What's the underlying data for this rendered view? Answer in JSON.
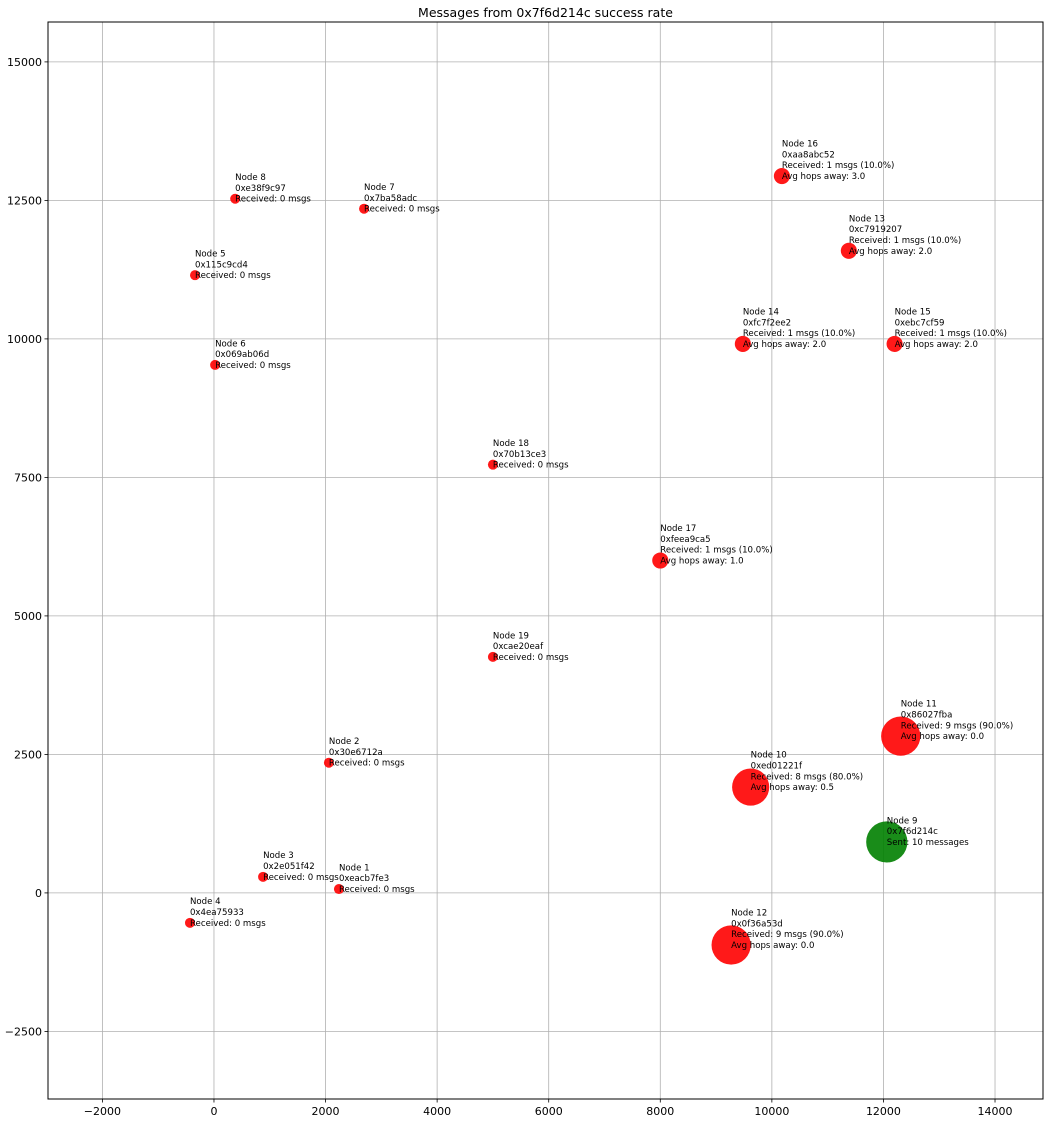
{
  "chart_data": {
    "type": "scatter",
    "title": "Messages from 0x7f6d214c success rate",
    "xlabel": "",
    "ylabel": "",
    "xlim": [
      -2975,
      14860
    ],
    "ylim": [
      -3720,
      15720
    ],
    "grid": true,
    "xticks": [
      -2000,
      0,
      2000,
      4000,
      6000,
      8000,
      10000,
      12000,
      14000
    ],
    "xtick_labels": [
      "−2000",
      "0",
      "2000",
      "4000",
      "6000",
      "8000",
      "10000",
      "12000",
      "14000"
    ],
    "yticks": [
      -2500,
      0,
      2500,
      5000,
      7500,
      10000,
      12500,
      15000
    ],
    "ytick_labels": [
      "−2500",
      "0",
      "2500",
      "5000",
      "7500",
      "10000",
      "12500",
      "15000"
    ],
    "colors": {
      "receiver": "#ff0000",
      "sender": "#008000"
    },
    "points": [
      {
        "node": "Node 1",
        "id": "0xeacb7fe3",
        "x": 2240,
        "y": 70,
        "count": 0,
        "role": "receiver",
        "lines": [
          "Node 1",
          "0xeacb7fe3",
          "Received: 0 msgs"
        ]
      },
      {
        "node": "Node 2",
        "id": "0x30e6712a",
        "x": 2060,
        "y": 2350,
        "count": 0,
        "role": "receiver",
        "lines": [
          "Node 2",
          "0x30e6712a",
          "Received: 0 msgs"
        ]
      },
      {
        "node": "Node 3",
        "id": "0x2e051f42",
        "x": 880,
        "y": 290,
        "count": 0,
        "role": "receiver",
        "lines": [
          "Node 3",
          "0x2e051f42",
          "Received: 0 msgs"
        ]
      },
      {
        "node": "Node 4",
        "id": "0x4ea75933",
        "x": -430,
        "y": -540,
        "count": 0,
        "role": "receiver",
        "lines": [
          "Node 4",
          "0x4ea75933",
          "Received: 0 msgs"
        ]
      },
      {
        "node": "Node 5",
        "id": "0x115c9cd4",
        "x": -340,
        "y": 11150,
        "count": 0,
        "role": "receiver",
        "lines": [
          "Node 5",
          "0x115c9cd4",
          "Received: 0 msgs"
        ]
      },
      {
        "node": "Node 6",
        "id": "0x069ab06d",
        "x": 20,
        "y": 9530,
        "count": 0,
        "role": "receiver",
        "lines": [
          "Node 6",
          "0x069ab06d",
          "Received: 0 msgs"
        ]
      },
      {
        "node": "Node 7",
        "id": "0x7ba58adc",
        "x": 2690,
        "y": 12350,
        "count": 0,
        "role": "receiver",
        "lines": [
          "Node 7",
          "0x7ba58adc",
          "Received: 0 msgs"
        ]
      },
      {
        "node": "Node 8",
        "id": "0xe38f9c97",
        "x": 380,
        "y": 12530,
        "count": 0,
        "role": "receiver",
        "lines": [
          "Node 8",
          "0xe38f9c97",
          "Received: 0 msgs"
        ]
      },
      {
        "node": "Node 9",
        "id": "0x7f6d214c",
        "x": 12060,
        "y": 920,
        "count": 10,
        "role": "sender",
        "lines": [
          "Node 9",
          "0x7f6d214c",
          "Sent: 10 messages"
        ]
      },
      {
        "node": "Node 10",
        "id": "0xed01221f",
        "x": 9620,
        "y": 1910,
        "count": 8,
        "role": "receiver",
        "lines": [
          "Node 10",
          "0xed01221f",
          "Received: 8 msgs (80.0%)",
          "Avg hops away: 0.5"
        ]
      },
      {
        "node": "Node 11",
        "id": "0x86027fba",
        "x": 12310,
        "y": 2830,
        "count": 9,
        "role": "receiver",
        "lines": [
          "Node 11",
          "0x86027fba",
          "Received: 9 msgs (90.0%)",
          "Avg hops away: 0.0"
        ]
      },
      {
        "node": "Node 12",
        "id": "0x0f36a53d",
        "x": 9270,
        "y": -940,
        "count": 9,
        "role": "receiver",
        "lines": [
          "Node 12",
          "0x0f36a53d",
          "Received: 9 msgs (90.0%)",
          "Avg hops away: 0.0"
        ]
      },
      {
        "node": "Node 13",
        "id": "0xc7919207",
        "x": 11380,
        "y": 11590,
        "count": 1,
        "role": "receiver",
        "lines": [
          "Node 13",
          "0xc7919207",
          "Received: 1 msgs (10.0%)",
          "Avg hops away: 2.0"
        ]
      },
      {
        "node": "Node 14",
        "id": "0xfc7f2ee2",
        "x": 9480,
        "y": 9910,
        "count": 1,
        "role": "receiver",
        "lines": [
          "Node 14",
          "0xfc7f2ee2",
          "Received: 1 msgs (10.0%)",
          "Avg hops away: 2.0"
        ]
      },
      {
        "node": "Node 15",
        "id": "0xebc7cf59",
        "x": 12200,
        "y": 9910,
        "count": 1,
        "role": "receiver",
        "lines": [
          "Node 15",
          "0xebc7cf59",
          "Received: 1 msgs (10.0%)",
          "Avg hops away: 2.0"
        ]
      },
      {
        "node": "Node 16",
        "id": "0xaa8abc52",
        "x": 10180,
        "y": 12940,
        "count": 1,
        "role": "receiver",
        "lines": [
          "Node 16",
          "0xaa8abc52",
          "Received: 1 msgs (10.0%)",
          "Avg hops away: 3.0"
        ]
      },
      {
        "node": "Node 17",
        "id": "0xfeea9ca5",
        "x": 8000,
        "y": 6000,
        "count": 1,
        "role": "receiver",
        "lines": [
          "Node 17",
          "0xfeea9ca5",
          "Received: 1 msgs (10.0%)",
          "Avg hops away: 1.0"
        ]
      },
      {
        "node": "Node 18",
        "id": "0x70b13ce3",
        "x": 5000,
        "y": 7730,
        "count": 0,
        "role": "receiver",
        "lines": [
          "Node 18",
          "0x70b13ce3",
          "Received: 0 msgs"
        ]
      },
      {
        "node": "Node 19",
        "id": "0xcae20eaf",
        "x": 5000,
        "y": 4260,
        "count": 0,
        "role": "receiver",
        "lines": [
          "Node 19",
          "0xcae20eaf",
          "Received: 0 msgs"
        ]
      }
    ]
  }
}
